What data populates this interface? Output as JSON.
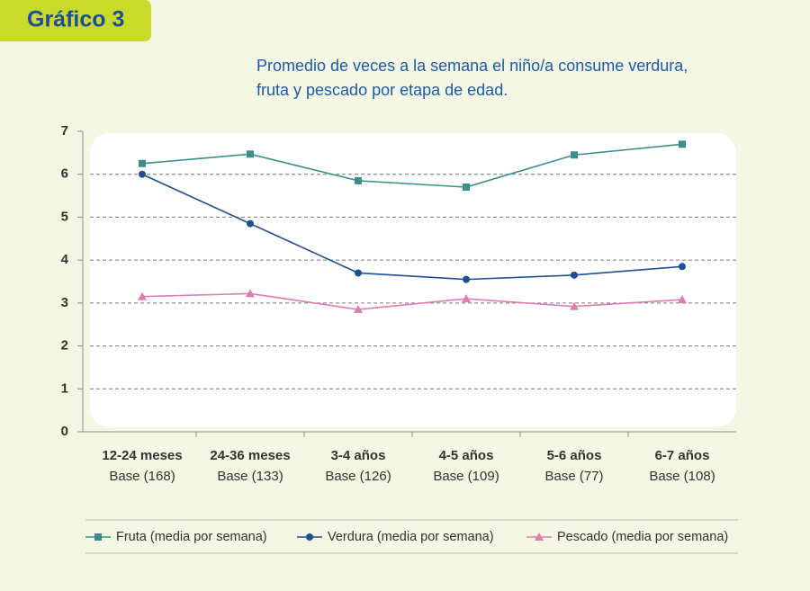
{
  "chart_data": {
    "type": "line",
    "label": "Gráfico 3",
    "title": [
      "Promedio de veces a la semana el niño/a consume verdura,",
      "fruta y pescado por etapa de edad."
    ],
    "categories": [
      "12-24 meses",
      "24-36 meses",
      "3-4 años",
      "4-5 años",
      "5-6 años",
      "6-7 años"
    ],
    "base_labels": [
      "Base (168)",
      "Base (133)",
      "Base (126)",
      "Base (109)",
      "Base (77)",
      "Base (108)"
    ],
    "series": [
      {
        "name": "Fruta (media por semana)",
        "color": "#3a8f8c",
        "marker": "square",
        "values": [
          6.25,
          6.47,
          5.85,
          5.7,
          6.45,
          6.7
        ]
      },
      {
        "name": "Verdura (media por semana)",
        "color": "#1d4f91",
        "marker": "circle",
        "values": [
          6.0,
          4.85,
          3.7,
          3.55,
          3.65,
          3.85
        ]
      },
      {
        "name": "Pescado (media por semana)",
        "color": "#e07bb5",
        "marker": "triangle",
        "values": [
          3.15,
          3.22,
          2.85,
          3.1,
          2.92,
          3.08
        ]
      }
    ],
    "ylim": [
      0,
      7
    ],
    "yticks": [
      0,
      1,
      2,
      3,
      4,
      5,
      6,
      7
    ],
    "grid": true,
    "legend": "bottom"
  }
}
